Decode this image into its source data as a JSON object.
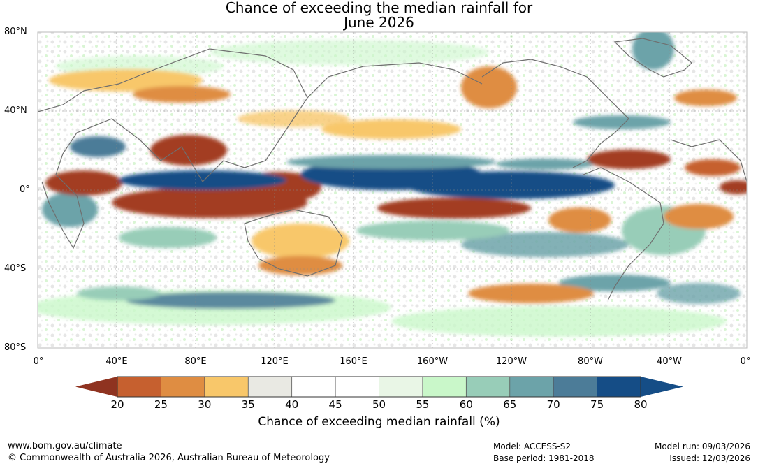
{
  "title": {
    "line1": "Chance of exceeding the median rainfall for",
    "line2": "June 2026"
  },
  "map": {
    "latitude_labels": [
      "80°N",
      "40°N",
      "0°",
      "40°S",
      "80°S"
    ],
    "longitude_labels": [
      "0°",
      "40°E",
      "80°E",
      "120°E",
      "160°E",
      "160°W",
      "120°W",
      "80°W",
      "40°W",
      "0°"
    ]
  },
  "colorbar": {
    "ticks": [
      "20",
      "25",
      "30",
      "35",
      "40",
      "45",
      "50",
      "55",
      "60",
      "65",
      "70",
      "75",
      "80"
    ],
    "colors": [
      "#a33c22",
      "#c6602f",
      "#df8d42",
      "#f8c76a",
      "#e9e9e3",
      "#ffffff",
      "#ffffff",
      "#e9f6e6",
      "#c9f7c9",
      "#98cdb8",
      "#6ca3a9",
      "#4c7c98",
      "#154d86"
    ],
    "low_color": "#8f3320",
    "high_color": "#154d86",
    "label": "Chance of exceeding median rainfall (%)"
  },
  "footer": {
    "website": "www.bom.gov.au/climate",
    "copyright": "© Commonwealth of Australia 2026, Australian Bureau of Meteorology",
    "model": "Model: ACCESS-S2",
    "base_period": "Base period: 1981-2018",
    "model_run": "Model run: 09/03/2026",
    "issued": "Issued: 12/03/2026"
  }
}
